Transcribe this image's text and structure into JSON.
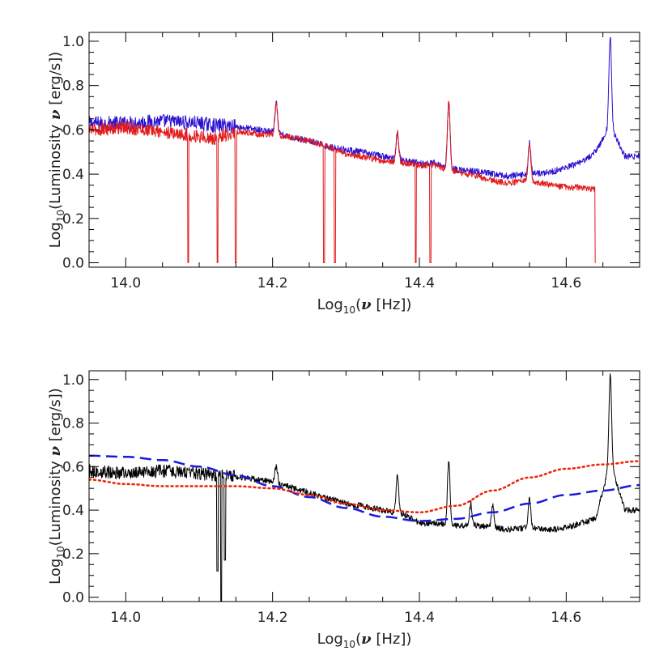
{
  "chart_data": [
    {
      "type": "line",
      "title": "",
      "xlabel_parts": [
        "Log",
        "10",
        "(",
        "ν",
        " [Hz])"
      ],
      "ylabel_parts": [
        "Log",
        "10",
        "(Luminosity ",
        "ν",
        " [erg/s])"
      ],
      "xlim": [
        13.95,
        14.7
      ],
      "ylim": [
        -0.02,
        1.04
      ],
      "xticks": [
        14.0,
        14.2,
        14.4,
        14.6
      ],
      "xtick_labels": [
        "14.0",
        "14.2",
        "14.4",
        "14.6"
      ],
      "yticks": [
        0.0,
        0.2,
        0.4,
        0.6,
        0.8,
        1.0
      ],
      "ytick_labels": [
        "0.0",
        "0.2",
        "0.4",
        "0.6",
        "0.8",
        "1.0"
      ],
      "legend": "none",
      "grid": false,
      "series": [
        {
          "color": "#2a10d0",
          "style": "solid-noisy",
          "x": [
            13.95,
            14.0,
            14.05,
            14.1,
            14.12,
            14.14,
            14.16,
            14.18,
            14.2,
            14.22,
            14.25,
            14.28,
            14.3,
            14.32,
            14.35,
            14.38,
            14.4,
            14.42,
            14.45,
            14.48,
            14.5,
            14.52,
            14.55,
            14.58,
            14.6,
            14.62,
            14.64,
            14.66,
            14.68,
            14.7
          ],
          "y": [
            0.63,
            0.63,
            0.64,
            0.63,
            0.62,
            0.62,
            0.61,
            0.6,
            0.59,
            0.57,
            0.55,
            0.52,
            0.51,
            0.5,
            0.48,
            0.46,
            0.45,
            0.45,
            0.42,
            0.41,
            0.4,
            0.39,
            0.4,
            0.41,
            0.43,
            0.45,
            0.5,
            0.62,
            0.48,
            0.48
          ],
          "peaks": [
            [
              14.205,
              0.72
            ],
            [
              14.37,
              0.59
            ],
            [
              14.44,
              0.73
            ],
            [
              14.55,
              0.54
            ],
            [
              14.66,
              1.03
            ]
          ],
          "dips": []
        },
        {
          "color": "#e31a1c",
          "style": "solid-noisy",
          "x": [
            13.95,
            14.0,
            14.05,
            14.1,
            14.12,
            14.14,
            14.16,
            14.18,
            14.2,
            14.22,
            14.25,
            14.28,
            14.3,
            14.32,
            14.35,
            14.38,
            14.4,
            14.42,
            14.45,
            14.48,
            14.5,
            14.52,
            14.55,
            14.58,
            14.6,
            14.62,
            14.64
          ],
          "y": [
            0.6,
            0.61,
            0.59,
            0.57,
            0.56,
            0.58,
            0.59,
            0.58,
            0.58,
            0.57,
            0.55,
            0.52,
            0.49,
            0.48,
            0.46,
            0.45,
            0.44,
            0.44,
            0.41,
            0.39,
            0.37,
            0.36,
            0.37,
            0.35,
            0.34,
            0.34,
            0.33
          ],
          "peaks": [
            [
              14.205,
              0.72
            ],
            [
              14.37,
              0.59
            ],
            [
              14.44,
              0.73
            ],
            [
              14.55,
              0.54
            ]
          ],
          "dips": [
            [
              14.085,
              0.0
            ],
            [
              14.125,
              0.0
            ],
            [
              14.15,
              0.0
            ],
            [
              14.27,
              0.0
            ],
            [
              14.285,
              0.0
            ],
            [
              14.395,
              0.0
            ],
            [
              14.415,
              0.0
            ],
            [
              14.64,
              0.0
            ]
          ]
        }
      ]
    },
    {
      "type": "line",
      "title": "",
      "xlabel_parts": [
        "Log",
        "10",
        "(",
        "ν",
        " [Hz])"
      ],
      "ylabel_parts": [
        "Log",
        "10",
        "(Luminosity ",
        "ν",
        " [erg/s])"
      ],
      "xlim": [
        13.95,
        14.7
      ],
      "ylim": [
        -0.02,
        1.04
      ],
      "xticks": [
        14.0,
        14.2,
        14.4,
        14.6
      ],
      "xtick_labels": [
        "14.0",
        "14.2",
        "14.4",
        "14.6"
      ],
      "yticks": [
        0.0,
        0.2,
        0.4,
        0.6,
        0.8,
        1.0
      ],
      "ytick_labels": [
        "0.0",
        "0.2",
        "0.4",
        "0.6",
        "0.8",
        "1.0"
      ],
      "legend": "none",
      "grid": false,
      "series": [
        {
          "color": "#000000",
          "style": "solid-noisy",
          "x": [
            13.95,
            14.0,
            14.05,
            14.1,
            14.12,
            14.14,
            14.16,
            14.18,
            14.2,
            14.22,
            14.25,
            14.28,
            14.3,
            14.32,
            14.35,
            14.38,
            14.4,
            14.42,
            14.45,
            14.48,
            14.5,
            14.52,
            14.55,
            14.58,
            14.6,
            14.62,
            14.64,
            14.66,
            14.68,
            14.7
          ],
          "y": [
            0.58,
            0.57,
            0.58,
            0.57,
            0.56,
            0.56,
            0.55,
            0.54,
            0.53,
            0.51,
            0.48,
            0.45,
            0.43,
            0.42,
            0.4,
            0.38,
            0.34,
            0.34,
            0.33,
            0.33,
            0.32,
            0.31,
            0.32,
            0.31,
            0.32,
            0.34,
            0.36,
            0.62,
            0.4,
            0.4
          ],
          "peaks": [
            [
              14.205,
              0.6
            ],
            [
              14.37,
              0.56
            ],
            [
              14.44,
              0.63
            ],
            [
              14.47,
              0.43
            ],
            [
              14.5,
              0.42
            ],
            [
              14.55,
              0.45
            ],
            [
              14.66,
              1.03
            ]
          ],
          "dips": [
            [
              14.13,
              -0.02
            ],
            [
              14.125,
              0.12
            ],
            [
              14.135,
              0.17
            ]
          ]
        },
        {
          "color": "#1a1adc",
          "style": "dashed",
          "x": [
            13.95,
            14.0,
            14.05,
            14.1,
            14.15,
            14.2,
            14.25,
            14.3,
            14.35,
            14.4,
            14.45,
            14.5,
            14.55,
            14.6,
            14.65,
            14.7
          ],
          "y": [
            0.65,
            0.645,
            0.63,
            0.6,
            0.56,
            0.51,
            0.46,
            0.41,
            0.37,
            0.35,
            0.36,
            0.39,
            0.43,
            0.47,
            0.49,
            0.515
          ]
        },
        {
          "color": "#ee2200",
          "style": "dotted",
          "x": [
            13.95,
            14.0,
            14.05,
            14.1,
            14.15,
            14.2,
            14.25,
            14.3,
            14.35,
            14.4,
            14.45,
            14.5,
            14.55,
            14.6,
            14.65,
            14.7
          ],
          "y": [
            0.54,
            0.52,
            0.51,
            0.51,
            0.51,
            0.5,
            0.47,
            0.43,
            0.4,
            0.39,
            0.42,
            0.49,
            0.55,
            0.59,
            0.61,
            0.625
          ]
        }
      ]
    }
  ]
}
